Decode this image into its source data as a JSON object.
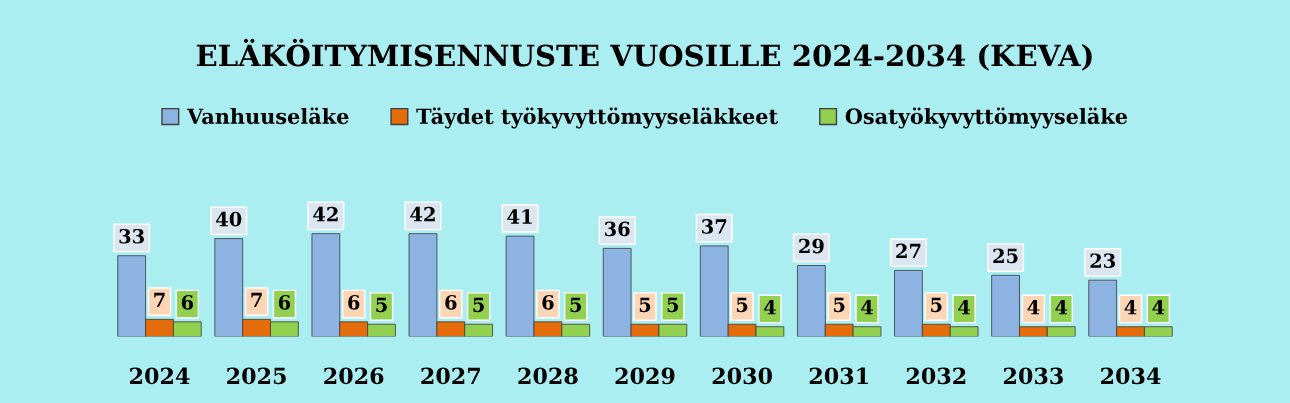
{
  "chart_data": {
    "type": "bar",
    "title": "ELÄKÖITYMISENNUSTE VUOSILLE 2024-2034 (KEVA)",
    "categories": [
      "2024",
      "2025",
      "2026",
      "2027",
      "2028",
      "2029",
      "2030",
      "2031",
      "2032",
      "2033",
      "2034"
    ],
    "series": [
      {
        "name": "Vanhuuseläke",
        "color": "#8db3e2",
        "values": [
          33,
          40,
          42,
          42,
          41,
          36,
          37,
          29,
          27,
          25,
          23
        ]
      },
      {
        "name": "Täydet työkyvyttömyyseläkkeet",
        "color": "#e46c0a",
        "values": [
          7,
          7,
          6,
          6,
          6,
          5,
          5,
          5,
          5,
          4,
          4
        ]
      },
      {
        "name": "Osatyökyvyttömyyseläke",
        "color": "#92d050",
        "values": [
          6,
          6,
          5,
          5,
          5,
          5,
          4,
          4,
          4,
          4,
          4
        ]
      }
    ],
    "data_labels": true,
    "legend": "top",
    "grid": false
  }
}
